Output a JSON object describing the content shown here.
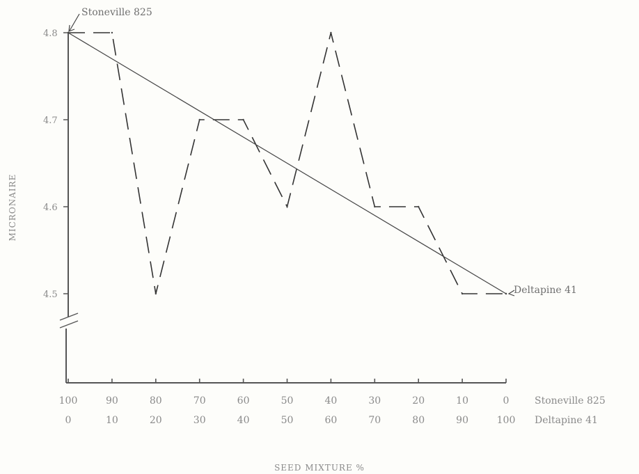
{
  "chart_data": {
    "type": "line",
    "xlabel": "SEED MIXTURE %",
    "ylabel": "MICRONAIRE",
    "ylim": [
      4.5,
      4.8
    ],
    "yticks": [
      "4.8",
      "4.7",
      "4.6",
      "4.5"
    ],
    "y_axis_break": true,
    "x_rows": [
      {
        "label": "Stoneville 825",
        "ticks": [
          "100",
          "90",
          "80",
          "70",
          "60",
          "50",
          "40",
          "30",
          "20",
          "10",
          "0"
        ]
      },
      {
        "label": "Deltapine 41",
        "ticks": [
          "0",
          "10",
          "20",
          "30",
          "40",
          "50",
          "60",
          "70",
          "80",
          "90",
          "100"
        ]
      }
    ],
    "series": [
      {
        "style": "dashed",
        "x": [
          100,
          90,
          80,
          70,
          60,
          50,
          40,
          30,
          20,
          10,
          0
        ],
        "y": [
          4.8,
          4.8,
          4.5,
          4.7,
          4.7,
          4.6,
          4.8,
          4.6,
          4.6,
          4.5,
          4.5
        ]
      },
      {
        "style": "solid",
        "x": [
          100,
          0
        ],
        "y": [
          4.8,
          4.5
        ]
      }
    ],
    "annotations": [
      {
        "text": "Stoneville 825",
        "x": 100,
        "y": 4.8
      },
      {
        "text": "Deltapine 41",
        "x": 0,
        "y": 4.5
      }
    ],
    "grid": false
  }
}
